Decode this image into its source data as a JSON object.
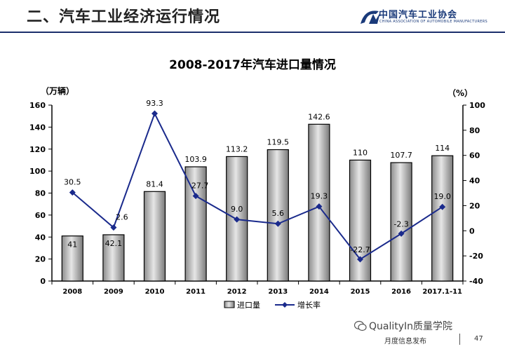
{
  "header": {
    "title": "二、汽车工业经济运行情况",
    "org_name": "中国汽车工业协会",
    "org_name_en": "CHINA ASSOCIATION OF AUTOMOBILE MANUFACTURERS"
  },
  "footer": {
    "watermark": "QualityIn质量学院",
    "note": "月度信息发布",
    "page": "47"
  },
  "colors": {
    "header_rule": "#1b2f6b",
    "bar_fill": "#b8b8b8",
    "line": "#1a2a8c"
  },
  "chart_data": {
    "type": "bar",
    "title": "2008-2017年汽车进口量情况",
    "ylabel": "（万辆）",
    "y2label": "（%）",
    "categories": [
      "2008",
      "2009",
      "2010",
      "2011",
      "2012",
      "2013",
      "2014",
      "2015",
      "2016",
      "2017.1-11"
    ],
    "ylim": [
      0,
      160
    ],
    "y2lim": [
      -40,
      100
    ],
    "yticks": [
      0,
      20,
      40,
      60,
      80,
      100,
      120,
      140,
      160
    ],
    "y2ticks": [
      -40,
      -20,
      0,
      20,
      40,
      60,
      80,
      100
    ],
    "series": [
      {
        "name": "进口量",
        "kind": "bar",
        "axis": "left",
        "values": [
          41,
          42.1,
          81.4,
          103.9,
          113.2,
          119.5,
          142.6,
          110,
          107.7,
          114
        ],
        "labels": [
          "41",
          "42.1",
          "81.4",
          "103.9",
          "113.2",
          "119.5",
          "142.6",
          "110",
          "107.7",
          "114"
        ]
      },
      {
        "name": "增长率",
        "kind": "line",
        "axis": "right",
        "values": [
          30.5,
          2.6,
          93.3,
          27.7,
          9.0,
          5.6,
          19.3,
          -22.7,
          -2.3,
          19.0
        ],
        "labels": [
          "30.5",
          "2.6",
          "93.3",
          "27.7",
          "9.0",
          "5.6",
          "19.3",
          "-22.7",
          "-2.3",
          "19.0"
        ]
      }
    ],
    "legend_position": "bottom-center",
    "grid": false
  }
}
